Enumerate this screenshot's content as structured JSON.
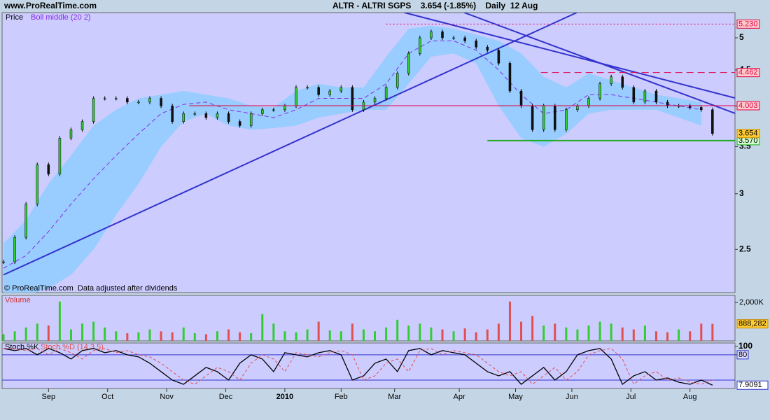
{
  "header": {
    "site": "www.ProRealTime.com",
    "title": "ALTR - ALTRI SGPS    3.654 (-1.85%)    Daily  12 Aug"
  },
  "chart_data": [
    {
      "type": "candlestick",
      "note": "© ProRealTime.com  Data adjusted after dividends",
      "xlim": [
        -0.5,
        260
      ],
      "xticks": [
        {
          "value": 16,
          "label": "Sep"
        },
        {
          "value": 37,
          "label": "Oct"
        },
        {
          "value": 58,
          "label": "Nov"
        },
        {
          "value": 79,
          "label": "Dec"
        },
        {
          "value": 100,
          "label": "2010"
        },
        {
          "value": 120,
          "label": "Feb"
        },
        {
          "value": 139,
          "label": "Mar"
        },
        {
          "value": 162,
          "label": "Apr"
        },
        {
          "value": 182,
          "label": "May"
        },
        {
          "value": 202,
          "label": "Jun"
        },
        {
          "value": 223,
          "label": "Jul"
        },
        {
          "value": 244,
          "label": "Aug"
        }
      ],
      "ylim": [
        2.17,
        5.43
      ],
      "log_scale": true,
      "yticks": [
        2.5,
        3,
        3.5,
        4,
        4.5,
        5
      ],
      "x": [
        0,
        4,
        8,
        12,
        16,
        20,
        24,
        28,
        32,
        36,
        40,
        44,
        48,
        52,
        56,
        60,
        64,
        68,
        72,
        76,
        80,
        84,
        88,
        92,
        96,
        100,
        104,
        108,
        112,
        116,
        120,
        124,
        128,
        132,
        136,
        140,
        144,
        148,
        152,
        156,
        160,
        164,
        168,
        172,
        176,
        180,
        184,
        188,
        192,
        196,
        200,
        204,
        208,
        212,
        216,
        220,
        224,
        228,
        232,
        236,
        240,
        244,
        248,
        252
      ],
      "series": [
        {
          "name": "Price",
          "up_color": "#33cc33",
          "down_color": "#111111",
          "values": [
            2.4,
            2.6,
            2.9,
            3.3,
            3.2,
            3.6,
            3.7,
            3.8,
            4.1,
            4.1,
            4.1,
            4.05,
            4.05,
            4.1,
            4.0,
            3.8,
            3.9,
            3.9,
            3.85,
            3.9,
            3.8,
            3.75,
            3.9,
            3.95,
            3.95,
            4.0,
            4.25,
            4.25,
            4.15,
            4.2,
            4.25,
            3.95,
            4.05,
            4.1,
            4.25,
            4.45,
            4.75,
            5.0,
            5.1,
            5.0,
            5.0,
            4.95,
            4.85,
            4.8,
            4.6,
            4.2,
            4.0,
            3.7,
            4.0,
            3.7,
            3.95,
            4.0,
            4.1,
            4.3,
            4.4,
            4.25,
            4.05,
            4.2,
            4.05,
            4.0,
            4.0,
            3.98,
            3.95,
            3.654
          ]
        }
      ],
      "boll": {
        "name": "Boll middle (20 2)",
        "color": "#8a2be2",
        "band_color": "#99ccff",
        "x": [
          0,
          8,
          16,
          24,
          32,
          40,
          48,
          56,
          64,
          72,
          80,
          88,
          96,
          104,
          112,
          120,
          128,
          136,
          144,
          152,
          160,
          168,
          176,
          184,
          192,
          200,
          208,
          216,
          224,
          232,
          240,
          248
        ],
        "middle": [
          2.35,
          2.45,
          2.65,
          2.9,
          3.15,
          3.4,
          3.65,
          3.9,
          4.02,
          4.05,
          3.95,
          3.9,
          3.85,
          3.95,
          4.1,
          4.1,
          4.1,
          4.3,
          4.75,
          4.95,
          4.95,
          4.8,
          4.5,
          4.15,
          3.9,
          3.95,
          4.15,
          4.15,
          4.1,
          4.05,
          4.0,
          3.95
        ],
        "upper": [
          2.55,
          2.75,
          3.1,
          3.4,
          3.75,
          3.95,
          4.1,
          4.15,
          4.2,
          4.15,
          4.1,
          4.0,
          3.98,
          4.2,
          4.3,
          4.25,
          4.25,
          4.7,
          5.15,
          5.2,
          5.15,
          5.05,
          4.95,
          4.75,
          4.4,
          4.25,
          4.45,
          4.35,
          4.25,
          4.15,
          4.1,
          4.05
        ],
        "lower": [
          2.1,
          2.15,
          2.2,
          2.3,
          2.5,
          2.8,
          3.1,
          3.5,
          3.8,
          3.9,
          3.75,
          3.7,
          3.72,
          3.75,
          3.85,
          3.9,
          3.95,
          3.95,
          4.3,
          4.7,
          4.75,
          4.6,
          4.0,
          3.6,
          3.5,
          3.65,
          3.9,
          3.95,
          3.95,
          3.95,
          3.85,
          3.75
        ]
      },
      "levels": [
        {
          "value": 5.23,
          "label": "5.230",
          "start": 136,
          "color": "#e0004a",
          "style": "dotted"
        },
        {
          "value": 4.462,
          "label": "4.462",
          "start": 191,
          "color": "#e0004a",
          "style": "dashed"
        },
        {
          "value": 4.003,
          "label": "4.003",
          "start": 66,
          "color": "#e0004a",
          "style": "solid"
        },
        {
          "value": 3.57,
          "label": "3.570",
          "start": 172,
          "color": "#22aa22",
          "style": "solid"
        }
      ],
      "last": {
        "value": 3.654,
        "label": "3.654"
      },
      "trendlines": [
        {
          "x": [
            0,
            203.75
          ],
          "y": [
            2.3,
            5.43
          ]
        },
        {
          "x": [
            142.5,
            260
          ],
          "y": [
            5.43,
            4.105
          ]
        },
        {
          "x": [
            163.75,
            260
          ],
          "y": [
            5.43,
            3.904
          ]
        }
      ],
      "trend_color": "#3333cc"
    },
    {
      "type": "bar",
      "name": "Volume",
      "ylim": [
        0,
        2370000
      ],
      "yticks": [
        {
          "value": 2000000,
          "label": "2,000K"
        }
      ],
      "values": [
        350000,
        500000,
        700000,
        900000,
        800000,
        2050000,
        600000,
        900000,
        1000000,
        700000,
        500000,
        400000,
        450000,
        600000,
        500000,
        450000,
        700000,
        400000,
        350000,
        500000,
        600000,
        450000,
        400000,
        1400000,
        900000,
        500000,
        450000,
        600000,
        1000000,
        550000,
        500000,
        900000,
        600000,
        500000,
        700000,
        1100000,
        800000,
        900000,
        700000,
        600000,
        500000,
        650000,
        450000,
        600000,
        900000,
        2050000,
        1000000,
        1300000,
        800000,
        900000,
        700000,
        600000,
        800000,
        1000000,
        900000,
        700000,
        600000,
        800000,
        500000,
        450000,
        600000,
        500000,
        900000,
        888282
      ],
      "last": {
        "value": 888282,
        "label": "888,282"
      }
    },
    {
      "type": "line",
      "ylim": [
        0,
        108
      ],
      "yticks": [
        100,
        80
      ],
      "hlines": [
        80,
        20
      ],
      "series": [
        {
          "name": "Stoch %K",
          "color": "#000000",
          "values": [
            95,
            90,
            95,
            80,
            95,
            85,
            70,
            90,
            95,
            85,
            90,
            80,
            75,
            60,
            40,
            20,
            10,
            30,
            50,
            40,
            20,
            60,
            80,
            70,
            40,
            85,
            80,
            75,
            85,
            90,
            80,
            20,
            30,
            60,
            70,
            40,
            90,
            95,
            80,
            90,
            85,
            80,
            60,
            40,
            30,
            40,
            10,
            30,
            50,
            20,
            40,
            80,
            90,
            95,
            70,
            10,
            30,
            40,
            20,
            25,
            15,
            10,
            20,
            7.9091
          ]
        },
        {
          "name": "Stoch %D (14 3 5)",
          "color": "#e05050",
          "values": [
            95,
            95,
            90,
            95,
            80,
            95,
            85,
            70,
            90,
            95,
            85,
            90,
            80,
            75,
            60,
            40,
            20,
            10,
            30,
            50,
            40,
            20,
            60,
            80,
            70,
            40,
            85,
            80,
            75,
            85,
            90,
            80,
            20,
            30,
            60,
            70,
            40,
            90,
            95,
            80,
            90,
            85,
            80,
            60,
            40,
            30,
            40,
            10,
            30,
            50,
            20,
            40,
            80,
            90,
            95,
            70,
            10,
            30,
            40,
            20,
            25,
            15,
            10,
            20
          ]
        }
      ],
      "last": 7.9091
    }
  ]
}
